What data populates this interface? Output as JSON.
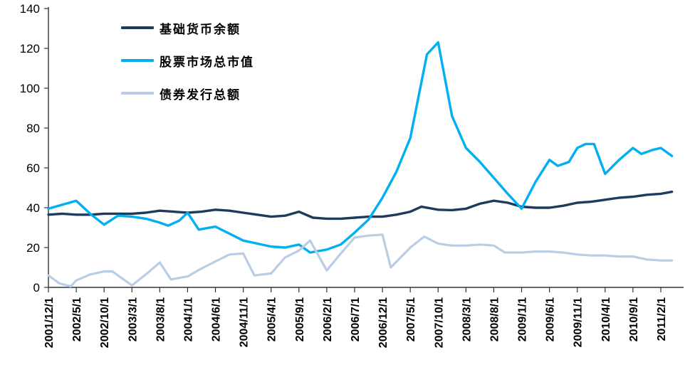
{
  "chart_data": {
    "type": "line",
    "title": "",
    "xlabel": "",
    "ylabel": "",
    "ylim": [
      0,
      140
    ],
    "yticks": [
      0,
      20,
      40,
      60,
      80,
      100,
      120,
      140
    ],
    "grid": false,
    "legend_position": "top-left-inside",
    "axis_color": "#333333",
    "tick_label_color": "#000000",
    "categories": [
      "2001/12/1",
      "2002/5/1",
      "2002/10/1",
      "2003/3/1",
      "2003/8/1",
      "2004/1/1",
      "2004/6/1",
      "2004/11/1",
      "2005/4/1",
      "2005/9/1",
      "2006/2/1",
      "2006/7/1",
      "2006/12/1",
      "2007/5/1",
      "2007/10/1",
      "2008/3/1",
      "2008/8/1",
      "2009/1/1",
      "2009/6/1",
      "2009/11/1",
      "2010/4/1",
      "2010/9/1",
      "2011/2/1"
    ],
    "x_unit_note": "x values are in tick-index units; one tick = 5 months",
    "series": [
      {
        "name": "基础货币余额",
        "color": "#1f3a5f",
        "width": 3.4,
        "points": [
          [
            0,
            36.5
          ],
          [
            0.5,
            37
          ],
          [
            1,
            36.5
          ],
          [
            1.5,
            36.5
          ],
          [
            2,
            37
          ],
          [
            2.5,
            37
          ],
          [
            3,
            37
          ],
          [
            3.5,
            37.5
          ],
          [
            4,
            38.5
          ],
          [
            4.5,
            38
          ],
          [
            5,
            37.5
          ],
          [
            5.5,
            38
          ],
          [
            6,
            39
          ],
          [
            6.5,
            38.5
          ],
          [
            7,
            37.5
          ],
          [
            7.5,
            36.5
          ],
          [
            8,
            35.5
          ],
          [
            8.5,
            36
          ],
          [
            9,
            38
          ],
          [
            9.5,
            35
          ],
          [
            10,
            34.5
          ],
          [
            10.5,
            34.5
          ],
          [
            11,
            35
          ],
          [
            11.5,
            35.5
          ],
          [
            12,
            35.5
          ],
          [
            12.5,
            36.5
          ],
          [
            13,
            38
          ],
          [
            13.4,
            40.5
          ],
          [
            14,
            39
          ],
          [
            14.5,
            38.8
          ],
          [
            15,
            39.5
          ],
          [
            15.5,
            42
          ],
          [
            16,
            43.5
          ],
          [
            16.5,
            42.5
          ],
          [
            17,
            40.5
          ],
          [
            17.5,
            40
          ],
          [
            18,
            40
          ],
          [
            18.5,
            41
          ],
          [
            19,
            42.5
          ],
          [
            19.5,
            43
          ],
          [
            20,
            44
          ],
          [
            20.5,
            45
          ],
          [
            21,
            45.5
          ],
          [
            21.5,
            46.5
          ],
          [
            22,
            47
          ],
          [
            22.4,
            48
          ]
        ]
      },
      {
        "name": "股票市场总市值",
        "color": "#00b0f0",
        "width": 3.4,
        "points": [
          [
            0,
            39.5
          ],
          [
            0.5,
            41.5
          ],
          [
            1,
            43.5
          ],
          [
            1.5,
            37
          ],
          [
            2,
            31.5
          ],
          [
            2.5,
            36
          ],
          [
            3,
            35.5
          ],
          [
            3.5,
            34.5
          ],
          [
            4,
            32.5
          ],
          [
            4.3,
            31
          ],
          [
            4.7,
            33.5
          ],
          [
            5,
            37.5
          ],
          [
            5.4,
            29
          ],
          [
            6,
            30.5
          ],
          [
            6.5,
            27
          ],
          [
            7,
            23.5
          ],
          [
            7.5,
            22
          ],
          [
            8,
            20.5
          ],
          [
            8.5,
            20
          ],
          [
            9,
            21.5
          ],
          [
            9.4,
            17.5
          ],
          [
            10,
            19
          ],
          [
            10.5,
            21.5
          ],
          [
            11,
            27.5
          ],
          [
            11.5,
            34
          ],
          [
            12,
            45
          ],
          [
            12.5,
            58
          ],
          [
            13,
            75
          ],
          [
            13.6,
            117
          ],
          [
            14,
            123
          ],
          [
            14.5,
            86
          ],
          [
            15,
            70
          ],
          [
            15.5,
            63
          ],
          [
            16,
            55
          ],
          [
            16.5,
            47
          ],
          [
            17,
            39.5
          ],
          [
            17.5,
            53
          ],
          [
            18,
            64
          ],
          [
            18.3,
            61
          ],
          [
            18.7,
            63
          ],
          [
            19,
            70
          ],
          [
            19.3,
            72
          ],
          [
            19.6,
            72
          ],
          [
            20,
            57
          ],
          [
            20.5,
            64
          ],
          [
            21,
            70
          ],
          [
            21.3,
            67
          ],
          [
            21.7,
            69
          ],
          [
            22,
            70
          ],
          [
            22.4,
            66
          ]
        ]
      },
      {
        "name": "债券发行总额",
        "color": "#b9cde5",
        "width": 3.2,
        "points": [
          [
            0,
            6
          ],
          [
            0.4,
            2
          ],
          [
            0.8,
            0.5
          ],
          [
            1,
            3.5
          ],
          [
            1.5,
            6.5
          ],
          [
            2,
            8
          ],
          [
            2.3,
            8
          ],
          [
            3,
            1
          ],
          [
            3.5,
            6.5
          ],
          [
            4,
            12.5
          ],
          [
            4.4,
            4
          ],
          [
            5,
            5.5
          ],
          [
            5.5,
            9.5
          ],
          [
            6,
            13
          ],
          [
            6.5,
            16.5
          ],
          [
            7,
            17
          ],
          [
            7.4,
            6
          ],
          [
            8,
            7
          ],
          [
            8.5,
            15
          ],
          [
            9,
            18.5
          ],
          [
            9.4,
            23.5
          ],
          [
            10,
            8.5
          ],
          [
            10.5,
            17
          ],
          [
            11,
            25
          ],
          [
            11.5,
            26
          ],
          [
            12,
            26.5
          ],
          [
            12.3,
            10
          ],
          [
            13,
            20
          ],
          [
            13.5,
            25.5
          ],
          [
            14,
            22
          ],
          [
            14.5,
            21
          ],
          [
            15,
            21
          ],
          [
            15.5,
            21.5
          ],
          [
            16,
            21
          ],
          [
            16.4,
            17.5
          ],
          [
            17,
            17.5
          ],
          [
            17.5,
            18
          ],
          [
            18,
            18
          ],
          [
            18.5,
            17.5
          ],
          [
            19,
            16.5
          ],
          [
            19.5,
            16
          ],
          [
            20,
            16
          ],
          [
            20.5,
            15.5
          ],
          [
            21,
            15.5
          ],
          [
            21.5,
            14
          ],
          [
            22,
            13.5
          ],
          [
            22.4,
            13.5
          ]
        ]
      }
    ]
  },
  "legend": {
    "items": [
      {
        "label": "基础货币余额"
      },
      {
        "label": "股票市场总市值"
      },
      {
        "label": "债券发行总额"
      }
    ]
  }
}
